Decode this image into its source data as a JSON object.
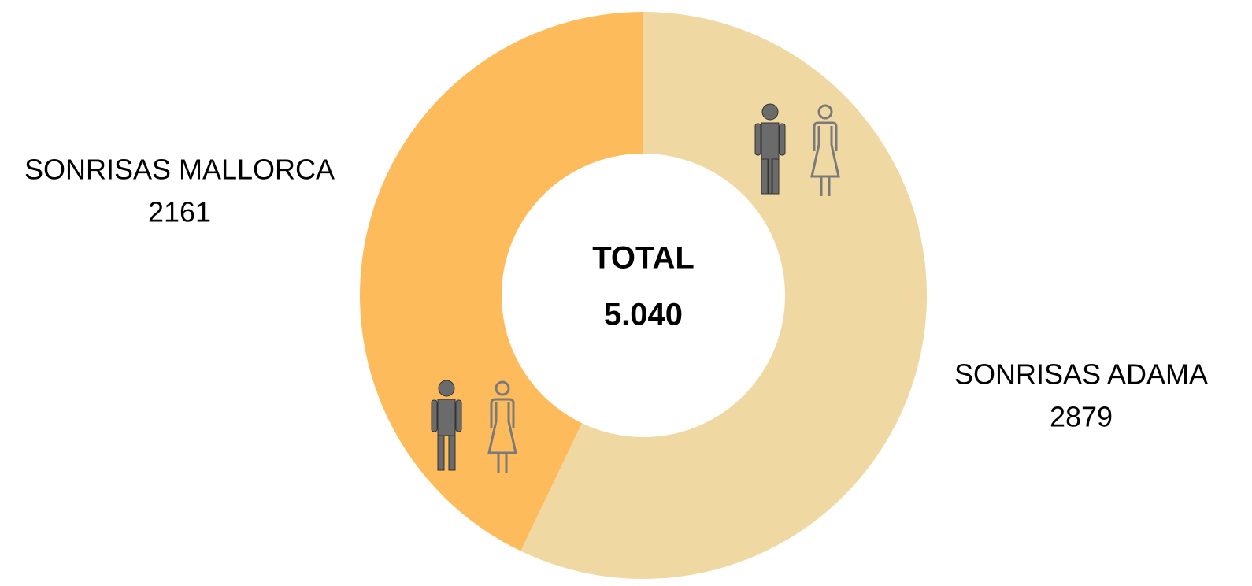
{
  "chart_data": {
    "type": "donut",
    "categories": [
      "SONRISAS ADAMA",
      "SONRISAS MALLORCA"
    ],
    "values": [
      2879,
      2161
    ],
    "colors": [
      "#f0d8a3",
      "#fdbb5c"
    ],
    "center_title": "TOTAL",
    "center_value": "5.040"
  }
}
